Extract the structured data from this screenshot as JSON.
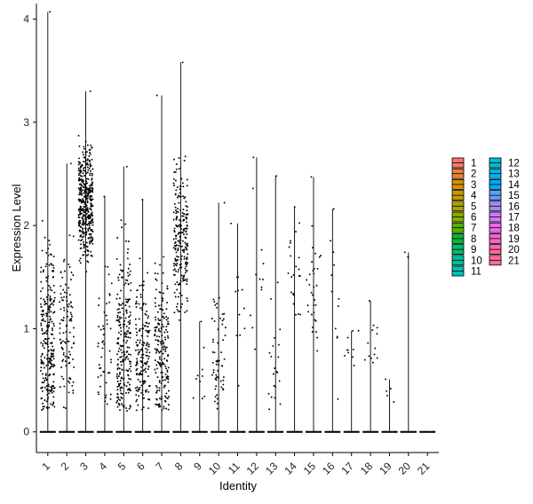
{
  "chart_data": {
    "type": "violin-jitter",
    "xlabel": "Identity",
    "ylabel": "Expression Level",
    "ylim": [
      -0.2,
      4.15
    ],
    "yticks": [
      0,
      1,
      2,
      3,
      4
    ],
    "categories": [
      "1",
      "2",
      "3",
      "4",
      "5",
      "6",
      "7",
      "8",
      "9",
      "10",
      "11",
      "12",
      "13",
      "14",
      "15",
      "16",
      "17",
      "18",
      "19",
      "20",
      "21"
    ],
    "max_values": [
      4.07,
      2.6,
      3.3,
      2.28,
      2.57,
      2.25,
      3.26,
      3.58,
      1.07,
      2.22,
      2.02,
      2.66,
      2.48,
      2.18,
      2.47,
      2.16,
      0.98,
      1.27,
      0.51,
      1.74,
      0.0
    ],
    "expressing_points": [
      260,
      110,
      420,
      50,
      230,
      170,
      190,
      230,
      10,
      60,
      12,
      12,
      22,
      22,
      32,
      12,
      10,
      13,
      5,
      3,
      0
    ],
    "point_center": [
      0.9,
      1.0,
      2.2,
      0.8,
      0.9,
      0.75,
      0.8,
      1.9,
      0.6,
      0.8,
      1.2,
      1.5,
      0.7,
      1.5,
      1.3,
      1.2,
      0.8,
      0.8,
      0.35,
      1.72,
      0
    ],
    "point_spread": [
      0.8,
      0.7,
      0.5,
      0.7,
      0.8,
      0.7,
      0.7,
      0.6,
      0.3,
      0.6,
      0.6,
      0.7,
      0.7,
      0.6,
      0.7,
      0.6,
      0.2,
      0.3,
      0.12,
      0.03,
      0
    ],
    "legend": {
      "placement": "right",
      "columns": [
        [
          "1",
          "2",
          "3",
          "4",
          "5",
          "6",
          "7",
          "8",
          "9",
          "10",
          "11"
        ],
        [
          "12",
          "13",
          "14",
          "15",
          "16",
          "17",
          "18",
          "19",
          "20",
          "21"
        ]
      ],
      "colors": [
        "#F8766D",
        "#EB8335",
        "#DA8F00",
        "#C49A00",
        "#A9A400",
        "#86AC00",
        "#53B400",
        "#00BA38",
        "#00BE6D",
        "#00C094",
        "#00C0B5",
        "#00BDD1",
        "#00B5EA",
        "#00A9FF",
        "#619CFF",
        "#A58AFF",
        "#D078FF",
        "#EE67EB",
        "#FF61C9",
        "#FF65A5",
        "#FF6C91"
      ]
    },
    "grid": false
  }
}
